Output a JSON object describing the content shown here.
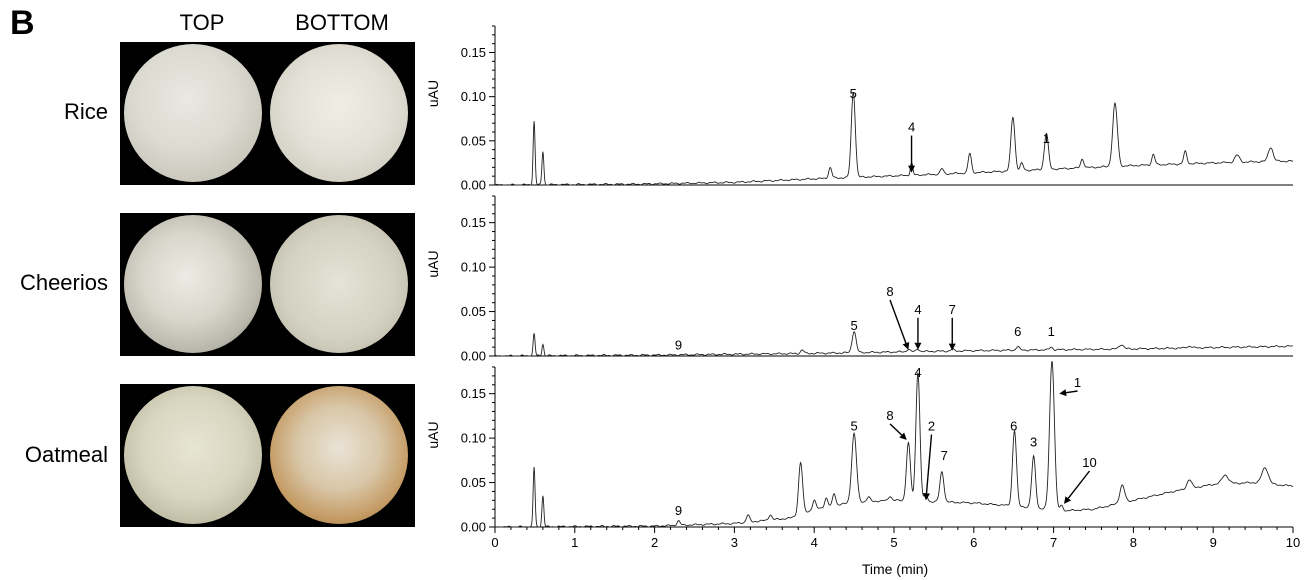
{
  "figure": {
    "panel_letter": "B",
    "columns": [
      "TOP",
      "BOTTOM"
    ],
    "rows": [
      "Rice",
      "Cheerios",
      "Oatmeal"
    ]
  },
  "chart_data": {
    "type": "line",
    "xlabel": "Time (min)",
    "ylabel": "uAU",
    "xlim": [
      0,
      10
    ],
    "x_ticks": [
      "0",
      "1",
      "2",
      "3",
      "4",
      "5",
      "6",
      "7",
      "8",
      "9",
      "10"
    ],
    "ylim": [
      0,
      0.18
    ],
    "y_ticks": [
      "0.00",
      "0.05",
      "0.10",
      "0.15"
    ],
    "grid": false,
    "panels": [
      {
        "name": "Rice",
        "baseline": [
          [
            0,
            0.0
          ],
          [
            1.8,
            0.001
          ],
          [
            3.0,
            0.003
          ],
          [
            4.0,
            0.007
          ],
          [
            5.5,
            0.012
          ],
          [
            7.0,
            0.018
          ],
          [
            8.0,
            0.022
          ],
          [
            9.0,
            0.025
          ],
          [
            9.8,
            0.027
          ],
          [
            10.0,
            0.027
          ]
        ],
        "peaks": [
          [
            0.49,
            0.072,
            0.012
          ],
          [
            0.6,
            0.038,
            0.012
          ],
          [
            4.2,
            0.012,
            0.02
          ],
          [
            4.49,
            0.097,
            0.025
          ],
          [
            5.22,
            0.014,
            0.015
          ],
          [
            5.6,
            0.006,
            0.02
          ],
          [
            5.95,
            0.022,
            0.02
          ],
          [
            6.49,
            0.061,
            0.025
          ],
          [
            6.6,
            0.008,
            0.02
          ],
          [
            6.91,
            0.041,
            0.025
          ],
          [
            7.36,
            0.01,
            0.02
          ],
          [
            7.77,
            0.071,
            0.03
          ],
          [
            8.25,
            0.012,
            0.02
          ],
          [
            8.65,
            0.014,
            0.02
          ],
          [
            9.3,
            0.008,
            0.03
          ],
          [
            9.72,
            0.016,
            0.03
          ]
        ],
        "labels": [
          {
            "text": "5",
            "x": 4.49,
            "y": 0.103,
            "arrow": false
          },
          {
            "text": "4",
            "x": 5.22,
            "y": 0.065,
            "arrow": true,
            "ax": 5.22,
            "ay": 0.014
          },
          {
            "text": "1",
            "x": 6.91,
            "y": 0.052,
            "arrow": false
          }
        ]
      },
      {
        "name": "Cheerios",
        "baseline": [
          [
            0,
            0.0
          ],
          [
            2.0,
            0.001
          ],
          [
            4.0,
            0.003
          ],
          [
            6.0,
            0.006
          ],
          [
            8.0,
            0.008
          ],
          [
            10.0,
            0.011
          ]
        ],
        "peaks": [
          [
            0.49,
            0.025,
            0.012
          ],
          [
            0.6,
            0.013,
            0.012
          ],
          [
            3.85,
            0.004,
            0.02
          ],
          [
            4.5,
            0.024,
            0.025
          ],
          [
            5.18,
            0.003,
            0.02
          ],
          [
            5.3,
            0.003,
            0.02
          ],
          [
            5.73,
            0.002,
            0.02
          ],
          [
            6.55,
            0.004,
            0.02
          ],
          [
            6.97,
            0.003,
            0.02
          ],
          [
            7.85,
            0.005,
            0.03
          ],
          [
            8.7,
            0.002,
            0.03
          ]
        ],
        "labels": [
          {
            "text": "9",
            "x": 2.3,
            "y": 0.012,
            "arrow": false
          },
          {
            "text": "5",
            "x": 4.5,
            "y": 0.034,
            "arrow": false
          },
          {
            "text": "8",
            "x": 4.95,
            "y": 0.072,
            "arrow": true,
            "ax": 5.18,
            "ay": 0.007
          },
          {
            "text": "4",
            "x": 5.3,
            "y": 0.052,
            "arrow": true,
            "ax": 5.3,
            "ay": 0.007
          },
          {
            "text": "7",
            "x": 5.73,
            "y": 0.052,
            "arrow": true,
            "ax": 5.73,
            "ay": 0.006
          },
          {
            "text": "6",
            "x": 6.55,
            "y": 0.027,
            "arrow": false
          },
          {
            "text": "1",
            "x": 6.97,
            "y": 0.027,
            "arrow": false
          }
        ]
      },
      {
        "name": "Oatmeal",
        "baseline": [
          [
            0,
            0.0
          ],
          [
            2.0,
            0.001
          ],
          [
            3.0,
            0.004
          ],
          [
            3.7,
            0.01
          ],
          [
            4.0,
            0.02
          ],
          [
            4.5,
            0.028
          ],
          [
            5.0,
            0.03
          ],
          [
            6.0,
            0.027
          ],
          [
            6.6,
            0.023
          ],
          [
            7.1,
            0.018
          ],
          [
            7.5,
            0.02
          ],
          [
            8.0,
            0.03
          ],
          [
            8.5,
            0.04
          ],
          [
            9.0,
            0.048
          ],
          [
            9.5,
            0.05
          ],
          [
            10.0,
            0.046
          ]
        ],
        "peaks": [
          [
            0.49,
            0.067,
            0.012
          ],
          [
            0.6,
            0.035,
            0.012
          ],
          [
            2.3,
            0.005,
            0.02
          ],
          [
            3.17,
            0.008,
            0.02
          ],
          [
            3.45,
            0.006,
            0.02
          ],
          [
            3.83,
            0.058,
            0.025
          ],
          [
            4.0,
            0.01,
            0.02
          ],
          [
            4.15,
            0.01,
            0.02
          ],
          [
            4.25,
            0.014,
            0.02
          ],
          [
            4.5,
            0.077,
            0.03
          ],
          [
            4.68,
            0.005,
            0.02
          ],
          [
            4.95,
            0.005,
            0.02
          ],
          [
            5.18,
            0.065,
            0.025
          ],
          [
            5.3,
            0.145,
            0.025
          ],
          [
            5.4,
            0.008,
            0.02
          ],
          [
            5.6,
            0.034,
            0.025
          ],
          [
            6.51,
            0.085,
            0.025
          ],
          [
            6.75,
            0.058,
            0.025
          ],
          [
            6.98,
            0.168,
            0.03
          ],
          [
            7.1,
            0.006,
            0.02
          ],
          [
            7.86,
            0.02,
            0.03
          ],
          [
            8.7,
            0.01,
            0.03
          ],
          [
            9.15,
            0.01,
            0.04
          ],
          [
            9.65,
            0.018,
            0.04
          ]
        ],
        "labels": [
          {
            "text": "9",
            "x": 2.3,
            "y": 0.018,
            "arrow": false
          },
          {
            "text": "5",
            "x": 4.5,
            "y": 0.113,
            "arrow": false
          },
          {
            "text": "8",
            "x": 4.95,
            "y": 0.125,
            "arrow": true,
            "ax": 5.16,
            "ay": 0.098
          },
          {
            "text": "4",
            "x": 5.3,
            "y": 0.173,
            "arrow": false
          },
          {
            "text": "2",
            "x": 5.47,
            "y": 0.113,
            "arrow": true,
            "ax": 5.4,
            "ay": 0.03
          },
          {
            "text": "7",
            "x": 5.63,
            "y": 0.08,
            "arrow": false
          },
          {
            "text": "6",
            "x": 6.5,
            "y": 0.113,
            "arrow": false
          },
          {
            "text": "3",
            "x": 6.75,
            "y": 0.095,
            "arrow": false
          },
          {
            "text": "1",
            "x": 7.3,
            "y": 0.162,
            "arrow": true,
            "ax": 7.07,
            "ay": 0.15
          },
          {
            "text": "10",
            "x": 7.45,
            "y": 0.072,
            "arrow": true,
            "ax": 7.13,
            "ay": 0.026
          }
        ]
      }
    ]
  }
}
